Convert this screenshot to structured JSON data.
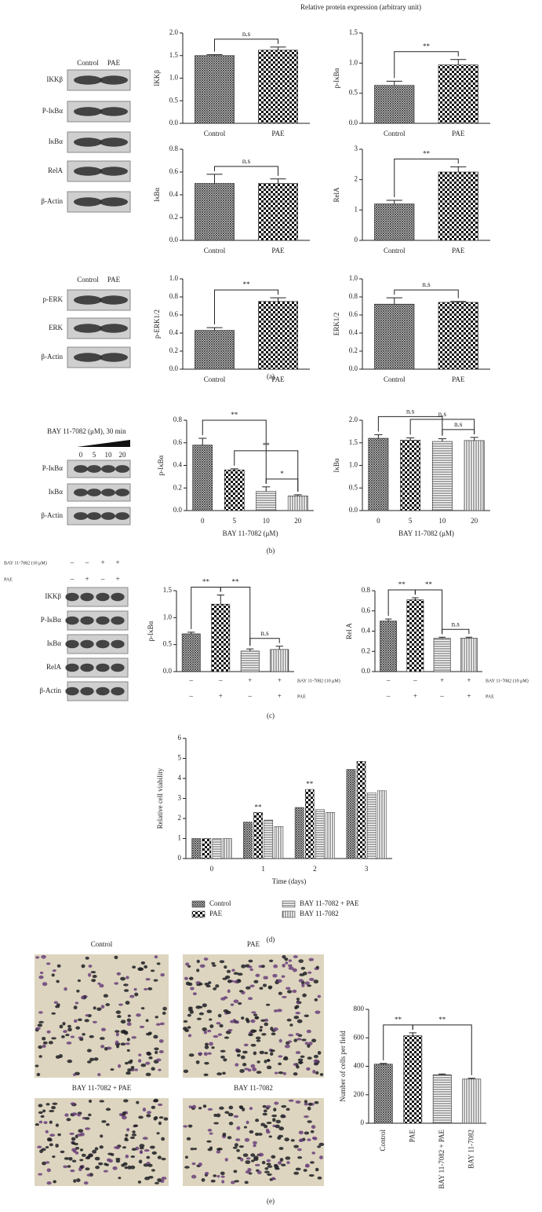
{
  "header": "Relative protein expression (arbitrary unit)",
  "panel_labels": [
    "(a)",
    "(b)",
    "(c)",
    "(d)",
    "(e)"
  ],
  "blots": [
    {
      "columns": [
        "Control",
        "PAE"
      ],
      "rows": [
        "IKKβ",
        "P-IκBα",
        "IκBα",
        "RelA",
        "β-Actin"
      ]
    },
    {
      "columns": [
        "Control",
        "PAE"
      ],
      "rows": [
        "p-ERK",
        "ERK",
        "β-Actin"
      ]
    },
    {
      "title": "BAY 11-7082 (μM), 30 min",
      "columns": [
        "0",
        "5",
        "10",
        "20"
      ],
      "rows": [
        "P-IκBα",
        "IκBα",
        "β-Actin"
      ]
    },
    {
      "header_rows": [
        {
          "label": "BAY 11-7082 (10 μM)",
          "marks": [
            "–",
            "–",
            "+",
            "+"
          ]
        },
        {
          "label": "PAE",
          "marks": [
            "–",
            "+",
            "–",
            "+"
          ]
        }
      ],
      "rows": [
        "IKKβ",
        "P-IκBα",
        "IκBα",
        "RelA",
        "β-Actin"
      ]
    }
  ],
  "micrographs": {
    "labels": [
      "Control",
      "PAE",
      "BAY 11-7082 + PAE",
      "BAY 11-7082"
    ]
  },
  "chart_data": [
    {
      "type": "bar",
      "ylabel": "IKKβ",
      "categories": [
        "Control",
        "PAE"
      ],
      "values": [
        1.5,
        1.62
      ],
      "errors": [
        0.02,
        0.07
      ],
      "patterns": [
        "dense",
        "checker"
      ],
      "ylim": [
        0,
        2
      ],
      "yticks": [
        {
          "value": 0,
          "label": "0.0"
        },
        0.5,
        {
          "value": 1,
          "label": "1.0"
        },
        1.5,
        {
          "value": 2,
          "label": "2.0"
        }
      ],
      "annotations": [
        {
          "text": "n.s",
          "between": [
            0,
            1
          ]
        }
      ]
    },
    {
      "type": "bar",
      "ylabel": "p-IκBα",
      "categories": [
        "Control",
        "PAE"
      ],
      "values": [
        0.63,
        0.97
      ],
      "errors": [
        0.07,
        0.09
      ],
      "patterns": [
        "dense",
        "checker"
      ],
      "ylim": [
        0,
        1.5
      ],
      "yticks": [
        {
          "value": 0,
          "label": "0.0"
        },
        0.5,
        {
          "value": 1,
          "label": "1.0"
        },
        1.5
      ],
      "annotations": [
        {
          "text": "**",
          "between": [
            0,
            1
          ]
        }
      ]
    },
    {
      "type": "bar",
      "ylabel": "IκBα",
      "categories": [
        "Control",
        "PAE"
      ],
      "values": [
        0.5,
        0.5
      ],
      "errors": [
        0.08,
        0.04
      ],
      "patterns": [
        "dense",
        "checker"
      ],
      "ylim": [
        0,
        0.8
      ],
      "yticks": [
        {
          "value": 0,
          "label": "0.0"
        },
        0.2,
        0.4,
        0.6,
        0.8
      ],
      "annotations": [
        {
          "text": "n.s",
          "between": [
            0,
            1
          ]
        }
      ]
    },
    {
      "type": "bar",
      "ylabel": "RelA",
      "categories": [
        "Control",
        "PAE"
      ],
      "values": [
        1.2,
        2.25
      ],
      "errors": [
        0.12,
        0.17
      ],
      "patterns": [
        "dense",
        "checker"
      ],
      "ylim": [
        0,
        3
      ],
      "yticks": [
        0,
        1,
        2,
        3
      ],
      "annotations": [
        {
          "text": "**",
          "between": [
            0,
            1
          ]
        }
      ]
    },
    {
      "type": "bar",
      "ylabel": "p-ERK1/2",
      "categories": [
        "Control",
        "PAE"
      ],
      "values": [
        0.43,
        0.75
      ],
      "errors": [
        0.03,
        0.04
      ],
      "patterns": [
        "dense",
        "checker"
      ],
      "ylim": [
        0,
        1
      ],
      "yticks": [
        {
          "value": 0,
          "label": "0.0"
        },
        0.2,
        0.4,
        0.6,
        0.8,
        {
          "value": 1,
          "label": "1.0"
        }
      ],
      "annotations": [
        {
          "text": "**",
          "between": [
            0,
            1
          ]
        }
      ]
    },
    {
      "type": "bar",
      "ylabel": "ERK1/2",
      "categories": [
        "Control",
        "PAE"
      ],
      "values": [
        0.72,
        0.74
      ],
      "errors": [
        0.07,
        0.01
      ],
      "patterns": [
        "dense",
        "checker"
      ],
      "ylim": [
        0,
        1
      ],
      "yticks": [
        {
          "value": 0,
          "label": "0.0"
        },
        0.2,
        0.4,
        0.6,
        0.8,
        {
          "value": 1,
          "label": "1.0"
        }
      ],
      "annotations": [
        {
          "text": "n.s",
          "between": [
            0,
            1
          ]
        }
      ]
    },
    {
      "type": "bar",
      "ylabel": "p-IκBα",
      "xlabel": "BAY 11-7082 (μM)",
      "categories": [
        "0",
        "5",
        "10",
        "20"
      ],
      "values": [
        0.58,
        0.36,
        0.17,
        0.13
      ],
      "errors": [
        0.06,
        0.01,
        0.04,
        0.01
      ],
      "patterns": [
        "dense",
        "checker",
        "hlines",
        "vlines"
      ],
      "ylim": [
        0,
        0.8
      ],
      "yticks": [
        {
          "value": 0,
          "label": "0.0"
        },
        0.2,
        0.4,
        0.6,
        0.8
      ],
      "annotations": [
        {
          "text": "*",
          "between": [
            2,
            3
          ]
        },
        {
          "text": "**",
          "between": [
            1,
            3
          ]
        },
        {
          "text": "**",
          "between": [
            0,
            2
          ]
        }
      ]
    },
    {
      "type": "bar",
      "ylabel": "IκBα",
      "xlabel": "BAY 11-7082 (μM)",
      "categories": [
        "0",
        "5",
        "10",
        "20"
      ],
      "values": [
        1.6,
        1.56,
        1.53,
        1.55
      ],
      "errors": [
        0.08,
        0.05,
        0.06,
        0.07
      ],
      "patterns": [
        "dense",
        "checker",
        "hlines",
        "vlines"
      ],
      "ylim": [
        0,
        2
      ],
      "yticks": [
        {
          "value": 0,
          "label": "0.0"
        },
        0.5,
        {
          "value": 1,
          "label": "1.0"
        },
        1.5,
        {
          "value": 2,
          "label": "2.0"
        }
      ],
      "annotations": [
        {
          "text": "n.s",
          "between": [
            2,
            3
          ]
        },
        {
          "text": "n.s",
          "between": [
            1,
            3
          ]
        },
        {
          "text": "n.s",
          "between": [
            0,
            2
          ]
        }
      ]
    },
    {
      "type": "bar",
      "ylabel": "p-IκBα",
      "categories": [
        null,
        null,
        null,
        null
      ],
      "x_rows": [
        {
          "label": "BAY 11-7082 (10 μM)",
          "marks": [
            "–",
            "–",
            "+",
            "+"
          ]
        },
        {
          "label": "PAE",
          "marks": [
            "–",
            "+",
            "–",
            "+"
          ]
        }
      ],
      "values": [
        0.7,
        1.25,
        0.38,
        0.41
      ],
      "errors": [
        0.03,
        0.17,
        0.04,
        0.06
      ],
      "patterns": [
        "dense",
        "checker",
        "hlines",
        "vlines"
      ],
      "ylim": [
        0,
        1.5
      ],
      "yticks": [
        {
          "value": 0,
          "label": "0.0"
        },
        0.5,
        {
          "value": 1,
          "label": "1.0"
        },
        1.5
      ],
      "annotations": [
        {
          "text": "**",
          "between": [
            0,
            1
          ]
        },
        {
          "text": "**",
          "between": [
            1,
            2
          ]
        },
        {
          "text": "n.s",
          "between": [
            2,
            3
          ]
        }
      ]
    },
    {
      "type": "bar",
      "ylabel": "Rel A",
      "categories": [
        null,
        null,
        null,
        null
      ],
      "x_rows": [
        {
          "label": "BAY 11-7082 (10 μM)",
          "marks": [
            "–",
            "–",
            "+",
            "+"
          ]
        },
        {
          "label": "PAE",
          "marks": [
            "–",
            "+",
            "–",
            "+"
          ]
        }
      ],
      "values": [
        0.5,
        0.71,
        0.33,
        0.33
      ],
      "errors": [
        0.02,
        0.02,
        0.01,
        0.01
      ],
      "patterns": [
        "dense",
        "checker",
        "hlines",
        "vlines"
      ],
      "ylim": [
        0,
        0.8
      ],
      "yticks": [
        {
          "value": 0,
          "label": "0.0"
        },
        0.2,
        0.4,
        0.6,
        0.8
      ],
      "annotations": [
        {
          "text": "**",
          "between": [
            0,
            1
          ]
        },
        {
          "text": "**",
          "between": [
            1,
            2
          ]
        },
        {
          "text": "n.s",
          "between": [
            2,
            3
          ]
        }
      ]
    },
    {
      "type": "bar",
      "ylabel": "Relative cell viability",
      "xlabel": "Time (days)",
      "categories": [
        "0",
        "1",
        "2",
        "3"
      ],
      "series": [
        {
          "name": "Control",
          "pattern": "dense",
          "values": [
            1,
            1.82,
            2.55,
            4.45
          ]
        },
        {
          "name": "PAE",
          "pattern": "checker",
          "values": [
            1,
            2.3,
            3.45,
            4.85
          ]
        },
        {
          "name": "BAY 11-7082 + PAE",
          "pattern": "hlines",
          "values": [
            1,
            1.92,
            2.45,
            3.28
          ]
        },
        {
          "name": "BAY 11-7082",
          "pattern": "vlines",
          "values": [
            1,
            1.6,
            2.3,
            3.38
          ]
        }
      ],
      "ylim": [
        0,
        6
      ],
      "yticks": [
        0,
        1,
        2,
        3,
        4,
        5,
        6
      ],
      "annotations": [
        {
          "text": "**",
          "series": 1,
          "index": 1
        },
        {
          "text": "**",
          "series": 1,
          "index": 2
        }
      ]
    },
    {
      "type": "bar",
      "ylabel": "Number of cells per field",
      "categories": [
        "Control",
        "PAE",
        "BAY 11-7082 + PAE",
        "BAY 11-7082"
      ],
      "values": [
        415,
        615,
        340,
        310
      ],
      "errors": [
        5,
        20,
        6,
        6
      ],
      "patterns": [
        "dense",
        "checker",
        "hlines",
        "vlines"
      ],
      "ylim": [
        0,
        800
      ],
      "yticks": [
        0,
        200,
        400,
        600,
        800
      ],
      "annotations": [
        {
          "text": "**",
          "between": [
            0,
            1
          ]
        },
        {
          "text": "**",
          "between": [
            1,
            3
          ]
        }
      ]
    }
  ]
}
